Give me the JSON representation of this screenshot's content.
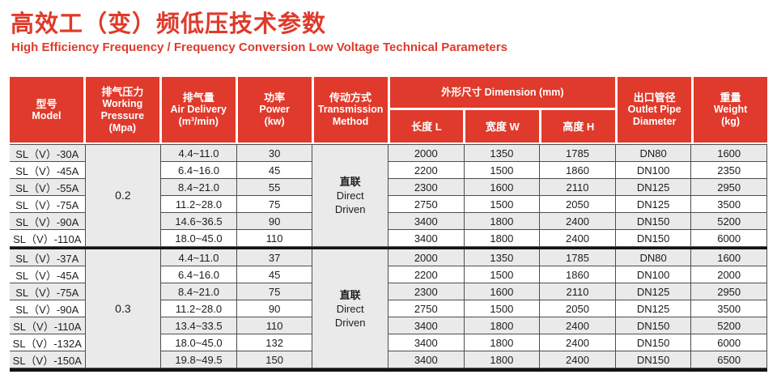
{
  "page": {
    "title": "高效工（变）频低压技术参数",
    "subtitle": "High Efficiency Frequency / Frequency Conversion Low Voltage Technical Parameters"
  },
  "colors": {
    "accent_red": "#df3a2b",
    "header_text": "#ffffff",
    "row_stripe": "#eaeaea",
    "grid_line": "#4d4d4d",
    "heavy_line": "#141414",
    "cell_text": "#1d1d1d"
  },
  "table": {
    "header": {
      "model": {
        "lines": [
          "型号",
          "Model"
        ]
      },
      "pressure": {
        "lines": [
          "排气压力",
          "Working",
          "Pressure",
          "(Mpa)"
        ]
      },
      "air_delivery": {
        "lines": [
          "排气量",
          "Air Delivery",
          "(m³/min)"
        ]
      },
      "power": {
        "lines": [
          "功率",
          "Power",
          "(kw)"
        ]
      },
      "transmission": {
        "lines": [
          "传动方式",
          "Transmission",
          "Method"
        ]
      },
      "dimension_group": "外形尺寸 Dimension (mm)",
      "dimension_subs": [
        "长度 L",
        "宽度 W",
        "高度 H"
      ],
      "outlet": {
        "lines": [
          "出口管径",
          "Outlet Pipe",
          "Diameter"
        ]
      },
      "weight": {
        "lines": [
          "重量",
          "Weight",
          "(kg)"
        ]
      }
    },
    "column_keys": [
      "model",
      "air_delivery",
      "power",
      "length",
      "width",
      "height",
      "outlet_pipe",
      "weight"
    ],
    "groups": [
      {
        "working_pressure": "0.2",
        "transmission_lines": [
          "直联",
          "Direct",
          "Driven"
        ],
        "rows": [
          [
            "SL（V）-30A",
            "4.4~11.0",
            "30",
            "2000",
            "1350",
            "1785",
            "DN80",
            "1600"
          ],
          [
            "SL（V）-45A",
            "6.4~16.0",
            "45",
            "2200",
            "1500",
            "1860",
            "DN100",
            "2350"
          ],
          [
            "SL（V）-55A",
            "8.4~21.0",
            "55",
            "2300",
            "1600",
            "2110",
            "DN125",
            "2950"
          ],
          [
            "SL（V）-75A",
            "11.2~28.0",
            "75",
            "2750",
            "1500",
            "2050",
            "DN125",
            "3500"
          ],
          [
            "SL（V）-90A",
            "14.6~36.5",
            "90",
            "3400",
            "1800",
            "2400",
            "DN150",
            "5200"
          ],
          [
            "SL（V）-110A",
            "18.0~45.0",
            "110",
            "3400",
            "1800",
            "2400",
            "DN150",
            "6000"
          ]
        ]
      },
      {
        "working_pressure": "0.3",
        "transmission_lines": [
          "直联",
          "Direct",
          "Driven"
        ],
        "rows": [
          [
            "SL（V）-37A",
            "4.4~11.0",
            "37",
            "2000",
            "1350",
            "1785",
            "DN80",
            "1600"
          ],
          [
            "SL（V）-45A",
            "6.4~16.0",
            "45",
            "2200",
            "1500",
            "1860",
            "DN100",
            "2000"
          ],
          [
            "SL（V）-75A",
            "8.4~21.0",
            "75",
            "2300",
            "1600",
            "2110",
            "DN125",
            "2950"
          ],
          [
            "SL（V）-90A",
            "11.2~28.0",
            "90",
            "2750",
            "1500",
            "2050",
            "DN125",
            "3500"
          ],
          [
            "SL（V）-110A",
            "13.4~33.5",
            "110",
            "3400",
            "1800",
            "2400",
            "DN150",
            "5200"
          ],
          [
            "SL（V）-132A",
            "18.0~45.0",
            "132",
            "3400",
            "1800",
            "2400",
            "DN150",
            "6000"
          ],
          [
            "SL（V）-150A",
            "19.8~49.5",
            "150",
            "3400",
            "1800",
            "2400",
            "DN150",
            "6500"
          ]
        ]
      }
    ]
  }
}
